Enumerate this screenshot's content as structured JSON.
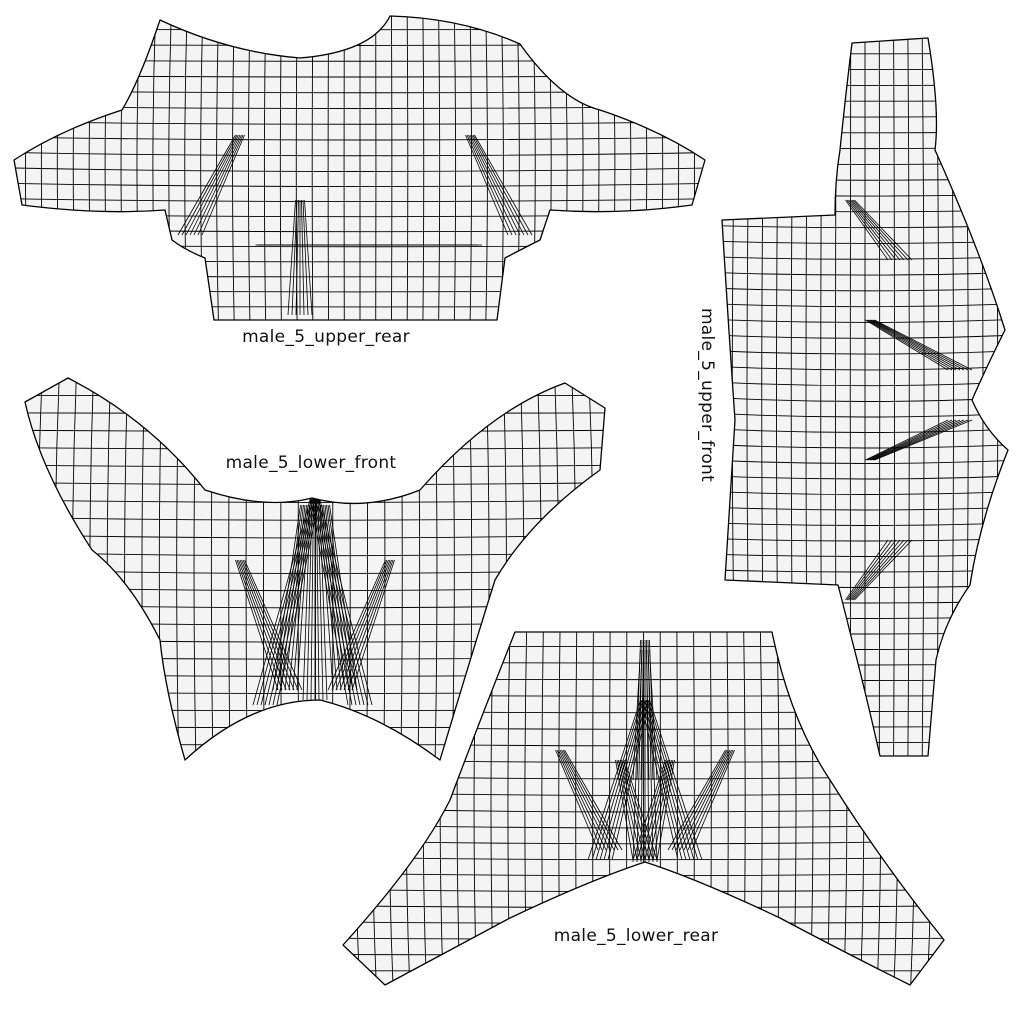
{
  "patches": [
    {
      "id": "upper_rear",
      "label": "male_5_upper_rear",
      "mesh": {
        "u_lines": 44,
        "v_lines": 20,
        "seams": 4
      }
    },
    {
      "id": "lower_front",
      "label": "male_5_lower_front",
      "mesh": {
        "u_lines": 34,
        "v_lines": 22,
        "seams": 7
      }
    },
    {
      "id": "upper_front",
      "label": "male_5_upper_front",
      "mesh": {
        "u_lines": 20,
        "v_lines": 46,
        "seams": 4
      }
    },
    {
      "id": "lower_rear",
      "label": "male_5_lower_rear",
      "mesh": {
        "u_lines": 36,
        "v_lines": 22,
        "seams": 8
      }
    }
  ],
  "colors": {
    "background": "#ffffff",
    "patch_fill": "#f4f4f4",
    "mesh_stroke": "#000000"
  }
}
